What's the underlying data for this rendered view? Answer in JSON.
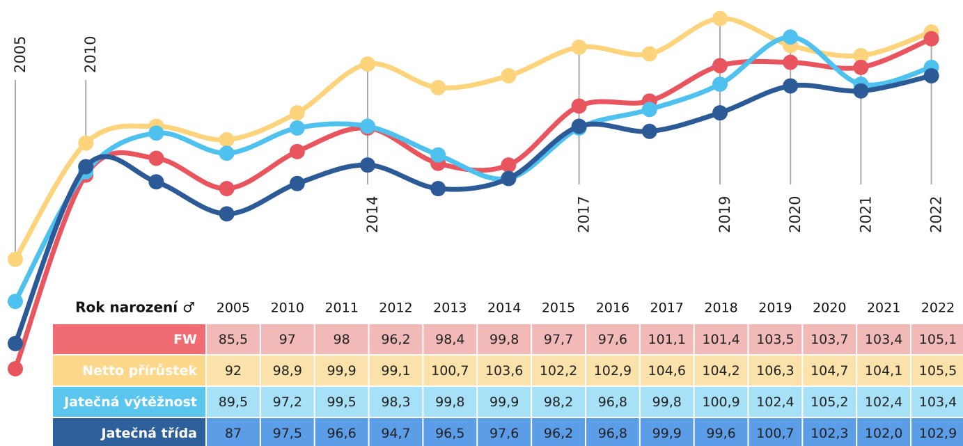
{
  "chart_data": {
    "type": "line",
    "table_header": "Rok narození ♂",
    "categories": [
      "2005",
      "2010",
      "2011",
      "2012",
      "2013",
      "2014",
      "2015",
      "2016",
      "2017",
      "2018",
      "2019",
      "2020",
      "2021",
      "2022"
    ],
    "x_labels": [
      "2005",
      "2010",
      null,
      null,
      null,
      "2014",
      null,
      null,
      "2017",
      null,
      "2019",
      "2020",
      "2021",
      "2022"
    ],
    "ylim": [
      85,
      107
    ],
    "series": [
      {
        "name": "FW",
        "color": "#e8555e",
        "label_color": "#f06c72",
        "cell_color": "#f2b9b9",
        "values": [
          85.5,
          97,
          98,
          96.2,
          98.4,
          99.8,
          97.7,
          97.6,
          101.1,
          101.4,
          103.5,
          103.7,
          103.4,
          105.1
        ],
        "value_labels": [
          "85,5",
          "97",
          "98",
          "96,2",
          "98,4",
          "99,8",
          "97,7",
          "97,6",
          "101,1",
          "101,4",
          "103,5",
          "103,7",
          "103,4",
          "105,1"
        ]
      },
      {
        "name": "Netto přírůstek",
        "color": "#fdd47c",
        "label_color": "#fdd88a",
        "cell_color": "#fbe1aa",
        "values": [
          92,
          98.9,
          99.9,
          99.1,
          100.7,
          103.6,
          102.2,
          102.9,
          104.6,
          104.2,
          106.3,
          104.7,
          104.1,
          105.5
        ],
        "value_labels": [
          "92",
          "98,9",
          "99,9",
          "99,1",
          "100,7",
          "103,6",
          "102,2",
          "102,9",
          "104,6",
          "104,2",
          "106,3",
          "104,7",
          "104,1",
          "105,5"
        ]
      },
      {
        "name": "Jatečná výtěžnost",
        "color": "#4fc1ef",
        "label_color": "#5ac6f0",
        "cell_color": "#a7e1f8",
        "values": [
          89.5,
          97.2,
          99.5,
          98.3,
          99.8,
          99.9,
          98.2,
          96.8,
          99.8,
          100.9,
          102.4,
          105.2,
          102.4,
          103.4
        ],
        "value_labels": [
          "89,5",
          "97,2",
          "99,5",
          "98,3",
          "99,8",
          "99,9",
          "98,2",
          "96,8",
          "99,8",
          "100,9",
          "102,4",
          "105,2",
          "102,4",
          "103,4"
        ]
      },
      {
        "name": "Jatečná třída",
        "color": "#2b5a96",
        "label_color": "#2d5f9a",
        "cell_color": "#5c9de8",
        "values": [
          87,
          97.5,
          96.6,
          94.7,
          96.5,
          97.6,
          96.2,
          96.8,
          99.9,
          99.6,
          100.7,
          102.3,
          102.0,
          102.9
        ],
        "value_labels": [
          "87",
          "97,5",
          "96,6",
          "94,7",
          "96,5",
          "97,6",
          "96,2",
          "96,8",
          "99,9",
          "99,6",
          "100,7",
          "102,3",
          "102,0",
          "102,9"
        ]
      }
    ]
  }
}
